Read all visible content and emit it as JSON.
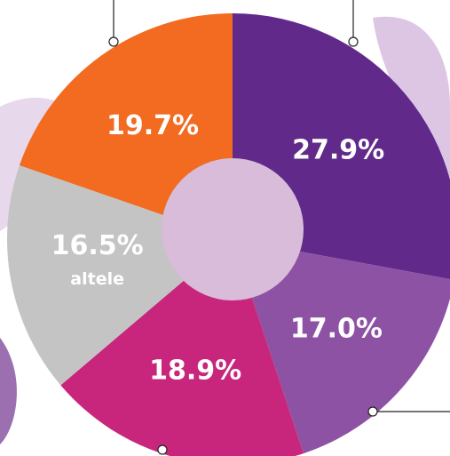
{
  "chart_data": {
    "type": "donut",
    "categories": [
      null,
      null,
      null,
      "altele",
      null
    ],
    "values": [
      27.9,
      17.0,
      18.9,
      16.5,
      19.7
    ],
    "value_labels": [
      "27.9%",
      "17.0%",
      "18.9%",
      "16.5%",
      "19.7%"
    ],
    "colors": [
      "#612a8a",
      "#8e52a5",
      "#c8267c",
      "#c4c4c4",
      "#f26b21"
    ]
  }
}
